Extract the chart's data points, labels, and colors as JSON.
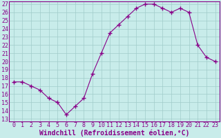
{
  "x": [
    0,
    1,
    2,
    3,
    4,
    5,
    6,
    7,
    8,
    9,
    10,
    11,
    12,
    13,
    14,
    15,
    16,
    17,
    18,
    19,
    20,
    21,
    22,
    23
  ],
  "y": [
    17.5,
    17.5,
    17.0,
    16.5,
    15.5,
    15.0,
    13.5,
    14.5,
    15.5,
    18.5,
    21.0,
    23.5,
    24.5,
    25.5,
    26.5,
    27.0,
    27.0,
    26.5,
    26.0,
    26.5,
    26.0,
    22.0,
    20.5,
    20.0
  ],
  "line_color": "#880088",
  "marker": "+",
  "marker_size": 4,
  "bg_color": "#c8ecea",
  "grid_color": "#a0ccca",
  "xlabel": "Windchill (Refroidissement éolien,°C)",
  "xlabel_color": "#880088",
  "tick_color": "#880088",
  "spine_color": "#880088",
  "ylim_min": 13,
  "ylim_max": 27,
  "xlim_min": 0,
  "xlim_max": 23,
  "yticks": [
    13,
    14,
    15,
    16,
    17,
    18,
    19,
    20,
    21,
    22,
    23,
    24,
    25,
    26,
    27
  ],
  "xticks": [
    0,
    1,
    2,
    3,
    4,
    5,
    6,
    7,
    8,
    9,
    10,
    11,
    12,
    13,
    14,
    15,
    16,
    17,
    18,
    19,
    20,
    21,
    22,
    23
  ],
  "tick_fontsize": 6,
  "xlabel_fontsize": 7
}
